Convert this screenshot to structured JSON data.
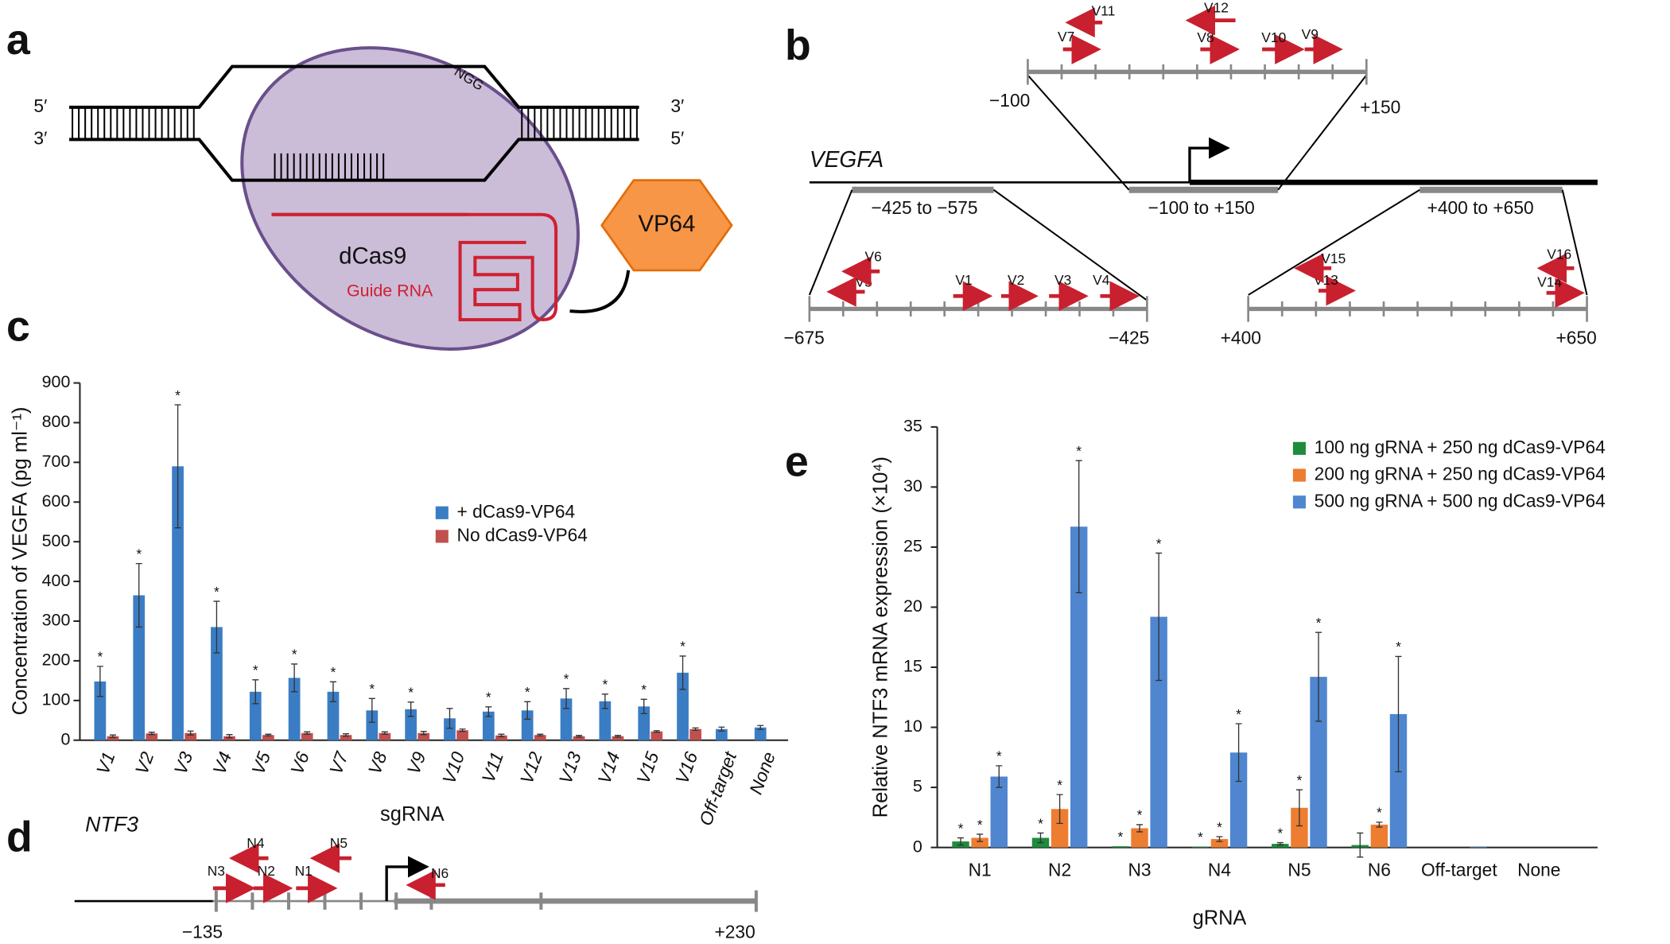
{
  "panels": {
    "letters": [
      "a",
      "b",
      "c",
      "d",
      "e"
    ]
  },
  "diagram_a": {
    "dna_ends": [
      "5′",
      "3′",
      "3′",
      "5′"
    ],
    "pam": "NGG",
    "protein": "dCas9",
    "guide": "Guide RNA",
    "effector": "VP64"
  },
  "diagram_b": {
    "gene": "VEGFA",
    "regions": [
      "−425 to −575",
      "−100 to +150",
      "+400 to +650"
    ],
    "scale_labels": [
      "−100",
      "+150",
      "−675",
      "−425",
      "+400",
      "+650"
    ],
    "guides": [
      "V1",
      "V2",
      "V3",
      "V4",
      "V5",
      "V6",
      "V7",
      "V8",
      "V9",
      "V10",
      "V11",
      "V12",
      "V13",
      "V14",
      "V15",
      "V16"
    ]
  },
  "diagram_d": {
    "gene": "NTF3",
    "guides": [
      "N1",
      "N2",
      "N3",
      "N4",
      "N5",
      "N6"
    ],
    "scale_labels": [
      "−135",
      "+230"
    ]
  },
  "chart_data": [
    {
      "type": "bar",
      "x_label": "sgRNA",
      "y_label": "Concentration of VEGFA (pg ml⁻¹)",
      "categories": [
        "V1",
        "V2",
        "V3",
        "V4",
        "V5",
        "V6",
        "V7",
        "V8",
        "V9",
        "V10",
        "V11",
        "V12",
        "V13",
        "V14",
        "V15",
        "V16",
        "Off-target",
        "None"
      ],
      "series": [
        {
          "name": "+ dCas9-VP64",
          "color": "#3b7dc4",
          "values": [
            148,
            365,
            690,
            285,
            122,
            157,
            122,
            75,
            78,
            55,
            72,
            75,
            105,
            98,
            85,
            170,
            28,
            32
          ],
          "errors": [
            38,
            80,
            155,
            65,
            30,
            35,
            25,
            30,
            18,
            25,
            12,
            22,
            25,
            18,
            18,
            42,
            5,
            5
          ],
          "significance": [
            "*",
            "*",
            "*",
            "*",
            "*",
            "*",
            "*",
            "*",
            "*",
            null,
            "*",
            "*",
            "*",
            "*",
            "*",
            "*",
            null,
            null
          ]
        },
        {
          "name": "No dCas9-VP64",
          "color": "#c0504d",
          "values": [
            10,
            17,
            18,
            10,
            13,
            18,
            13,
            18,
            18,
            25,
            12,
            13,
            10,
            10,
            22,
            28,
            null,
            null
          ],
          "errors": [
            3,
            3,
            5,
            4,
            2,
            3,
            3,
            3,
            4,
            3,
            3,
            2,
            2,
            2,
            2,
            3,
            null,
            null
          ],
          "significance": [
            null,
            null,
            null,
            null,
            null,
            null,
            null,
            null,
            null,
            null,
            null,
            null,
            null,
            null,
            null,
            null,
            null,
            null
          ]
        }
      ],
      "ylim": [
        0,
        900
      ],
      "yticks": [
        0,
        100,
        200,
        300,
        400,
        500,
        600,
        700,
        800,
        900
      ],
      "legend": "right"
    },
    {
      "type": "bar",
      "x_label": "gRNA",
      "y_label": "Relative NTF3 mRNA expression (×10⁴)",
      "categories": [
        "N1",
        "N2",
        "N3",
        "N4",
        "N5",
        "N6",
        "Off-target",
        "None"
      ],
      "series": [
        {
          "name": "100 ng gRNA + 250 ng dCas9-VP64",
          "color": "#1e8c3c",
          "values": [
            0.5,
            0.8,
            0.1,
            0.05,
            0.3,
            0.2,
            0,
            0
          ],
          "errors": [
            0.3,
            0.4,
            null,
            null,
            0.1,
            1.0,
            null,
            null
          ],
          "significance": [
            "*",
            "*",
            "*",
            "*",
            "*",
            null,
            null,
            null
          ]
        },
        {
          "name": "200 ng gRNA + 250 ng dCas9-VP64",
          "color": "#ed7d31",
          "values": [
            0.8,
            3.2,
            1.6,
            0.7,
            3.3,
            1.9,
            0,
            0
          ],
          "errors": [
            0.3,
            1.2,
            0.3,
            0.2,
            1.5,
            0.2,
            null,
            null
          ],
          "significance": [
            "*",
            "*",
            "*",
            "*",
            "*",
            "*",
            null,
            null
          ]
        },
        {
          "name": "500 ng gRNA + 500 ng dCas9-VP64",
          "color": "#4f86cf",
          "values": [
            5.9,
            26.7,
            19.2,
            7.9,
            14.2,
            11.1,
            0.05,
            0
          ],
          "errors": [
            0.9,
            5.5,
            5.3,
            2.4,
            3.7,
            4.8,
            null,
            null
          ],
          "significance": [
            "*",
            "*",
            "*",
            "*",
            "*",
            "*",
            null,
            null
          ]
        }
      ],
      "ylim": [
        0,
        35
      ],
      "yticks": [
        0,
        5,
        10,
        15,
        20,
        25,
        30,
        35
      ],
      "legend": "upper right"
    }
  ]
}
